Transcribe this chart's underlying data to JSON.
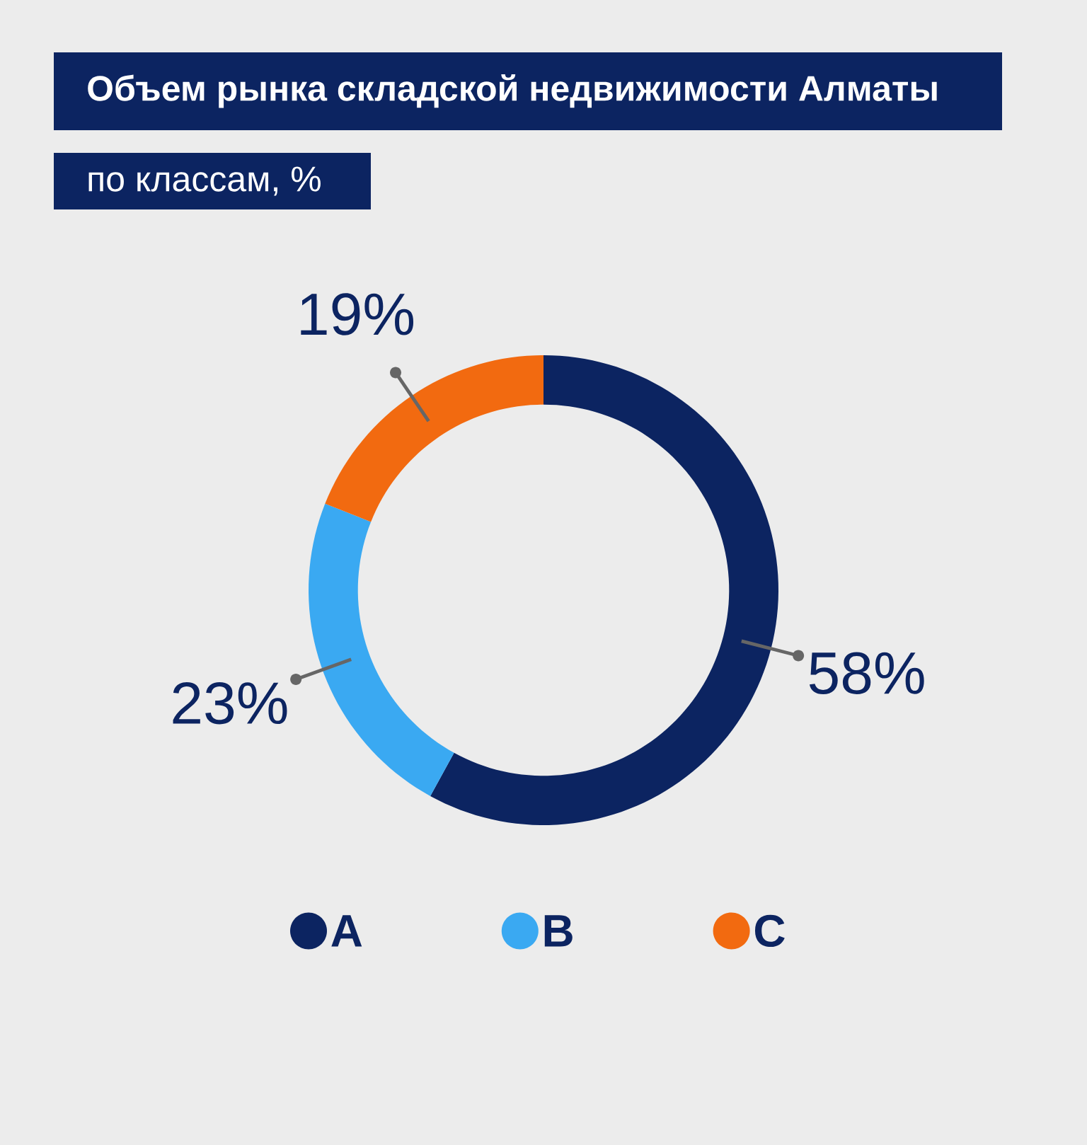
{
  "chart_data": {
    "type": "donut",
    "title": "Объем рынка складской недвижимости Алматы",
    "subtitle": "по классам, %",
    "categories": [
      "A",
      "B",
      "C"
    ],
    "values": [
      58,
      23,
      19
    ],
    "value_labels": [
      "58%",
      "23%",
      "19%"
    ],
    "colors": [
      "#0c2461",
      "#3aa9f2",
      "#f26a10"
    ],
    "legend": "bottom"
  }
}
